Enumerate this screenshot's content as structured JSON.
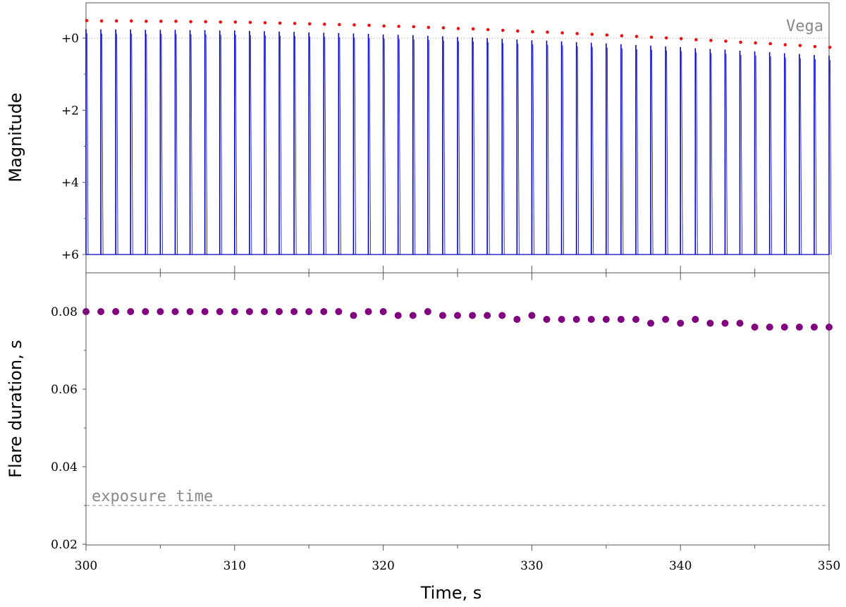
{
  "chart_data": [
    {
      "type": "line",
      "title": "",
      "ylabel": "Magnitude",
      "xlabel": "",
      "xlim": [
        300,
        350
      ],
      "ylim": [
        6,
        -1
      ],
      "y_inverted": true,
      "y_ticks": [
        0,
        2,
        4,
        6
      ],
      "y_tick_labels": [
        "+0",
        "+2",
        "+4",
        "+6"
      ],
      "grid": false,
      "reference_line": {
        "value": 0,
        "label": "Vega",
        "style": "dotted"
      },
      "series": [
        {
          "type": "flare-spikes",
          "color": "#0000cc",
          "baseline": 6,
          "x": [
            300,
            301,
            302,
            303,
            304,
            305,
            306,
            307,
            308,
            309,
            310,
            311,
            312,
            313,
            314,
            315,
            316,
            317,
            318,
            319,
            320,
            321,
            322,
            323,
            324,
            325,
            326,
            327,
            328,
            329,
            330,
            331,
            332,
            333,
            334,
            335,
            336,
            337,
            338,
            339,
            340,
            341,
            342,
            343,
            344,
            345,
            346,
            347,
            348,
            349,
            350
          ],
          "y": [
            -0.25,
            -0.24,
            -0.24,
            -0.24,
            -0.23,
            -0.23,
            -0.23,
            -0.22,
            -0.22,
            -0.21,
            -0.21,
            -0.2,
            -0.19,
            -0.18,
            -0.17,
            -0.16,
            -0.15,
            -0.14,
            -0.13,
            -0.12,
            -0.1,
            -0.09,
            -0.08,
            -0.06,
            -0.05,
            -0.03,
            -0.02,
            0.0,
            0.02,
            0.04,
            0.06,
            0.07,
            0.09,
            0.11,
            0.13,
            0.15,
            0.17,
            0.19,
            0.21,
            0.23,
            0.25,
            0.28,
            0.3,
            0.32,
            0.35,
            0.37,
            0.39,
            0.42,
            0.44,
            0.47,
            0.49
          ]
        }
      ],
      "peak_markers": {
        "color": "#ee1111"
      }
    },
    {
      "type": "scatter",
      "title": "",
      "ylabel": "Flare duration, s",
      "xlabel": "Time, s",
      "xlim": [
        300,
        350
      ],
      "ylim": [
        0.02,
        0.09
      ],
      "x_ticks": [
        300,
        310,
        320,
        330,
        340,
        350
      ],
      "x_tick_labels": [
        "300",
        "310",
        "320",
        "330",
        "340",
        "350"
      ],
      "y_ticks": [
        0.02,
        0.04,
        0.06,
        0.08
      ],
      "y_tick_labels": [
        "0.02",
        "0.04",
        "0.06",
        "0.08"
      ],
      "grid": false,
      "reference_line": {
        "value": 0.03,
        "label": "exposure time",
        "style": "dashed"
      },
      "series": [
        {
          "color": "#800080",
          "x": [
            300,
            301,
            302,
            303,
            304,
            305,
            306,
            307,
            308,
            309,
            310,
            311,
            312,
            313,
            314,
            315,
            316,
            317,
            318,
            319,
            320,
            321,
            322,
            323,
            324,
            325,
            326,
            327,
            328,
            329,
            330,
            331,
            332,
            333,
            334,
            335,
            336,
            337,
            338,
            339,
            340,
            341,
            342,
            343,
            344,
            345,
            346,
            347,
            348,
            349,
            350
          ],
          "y": [
            0.08,
            0.08,
            0.08,
            0.08,
            0.08,
            0.08,
            0.08,
            0.08,
            0.08,
            0.08,
            0.08,
            0.08,
            0.08,
            0.08,
            0.08,
            0.08,
            0.08,
            0.08,
            0.079,
            0.08,
            0.08,
            0.079,
            0.079,
            0.08,
            0.079,
            0.079,
            0.079,
            0.079,
            0.079,
            0.078,
            0.079,
            0.078,
            0.078,
            0.078,
            0.078,
            0.078,
            0.078,
            0.078,
            0.077,
            0.078,
            0.077,
            0.078,
            0.077,
            0.077,
            0.077,
            0.076,
            0.076,
            0.076,
            0.076,
            0.076,
            0.076
          ]
        }
      ]
    }
  ]
}
